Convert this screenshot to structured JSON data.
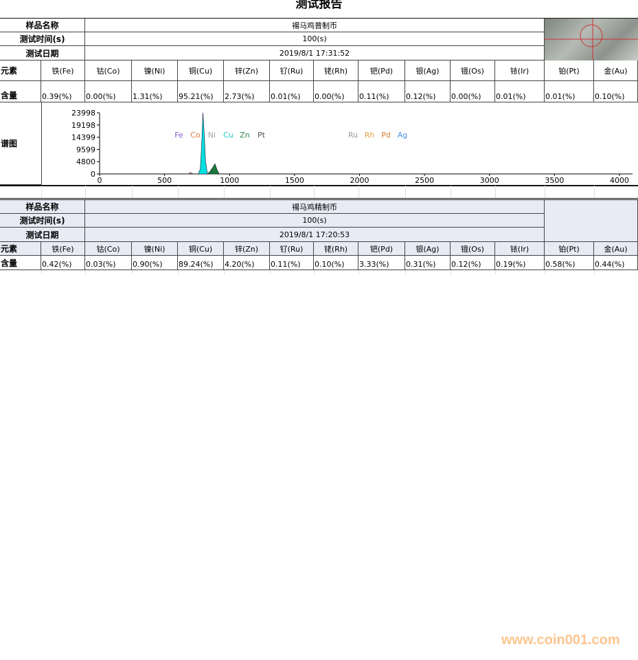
{
  "title": "测试报告",
  "labels": {
    "sample_name": "样品名称",
    "test_time": "测试时间(s)",
    "test_date": "测试日期",
    "element": "元素",
    "content": "含量",
    "spectrum": "谱图"
  },
  "elements": [
    "铁(Fe)",
    "钴(Co)",
    "镍(Ni)",
    "铜(Cu)",
    "锌(Zn)",
    "钌(Ru)",
    "铑(Rh)",
    "钯(Pd)",
    "银(Ag)",
    "锇(Os)",
    "铱(Ir)",
    "铂(Pt)",
    "金(Au)"
  ],
  "report1": {
    "sample_name": "禓马鸡普制币",
    "test_time": "100(s)",
    "test_date": "2019/8/1 17:31:52",
    "values": [
      "0.39(%)",
      "0.00(%)",
      "1.31(%)",
      "95.21(%)",
      "2.73(%)",
      "0.01(%)",
      "0.00(%)",
      "0.11(%)",
      "0.12(%)",
      "0.00(%)",
      "0.01(%)",
      "0.01(%)",
      "0.10(%)"
    ]
  },
  "report2": {
    "sample_name": "禓马鸡精制币",
    "test_time": "100(s)",
    "test_date": "2019/8/1 17:20:53",
    "values": [
      "0.42(%)",
      "0.03(%)",
      "0.90(%)",
      "89.24(%)",
      "4.20(%)",
      "0.11(%)",
      "0.10(%)",
      "3.33(%)",
      "0.31(%)",
      "0.12(%)",
      "0.19(%)",
      "0.58(%)",
      "0.44(%)"
    ]
  },
  "chart_data": {
    "type": "area",
    "xlim": [
      0,
      4000
    ],
    "ylim": [
      0,
      23998
    ],
    "x_ticks": [
      "0",
      "500",
      "1000",
      "1500",
      "2000",
      "2500",
      "3000",
      "3500",
      "4000"
    ],
    "y_ticks": [
      "0",
      "4800",
      "9599",
      "14399",
      "19198",
      "23998"
    ],
    "peak_labels": [
      {
        "text": "Fe",
        "x": 610,
        "color": "#8a5bd6"
      },
      {
        "text": "Co",
        "x": 680,
        "color": "#e07a3a"
      },
      {
        "text": "Ni",
        "x": 730,
        "color": "#a0a0a0"
      },
      {
        "text": "Cu",
        "x": 780,
        "color": "#22c3c9"
      },
      {
        "text": "Zn",
        "x": 830,
        "color": "#2c8a4a"
      },
      {
        "text": "Pt",
        "x": 950,
        "color": "#555555"
      },
      {
        "text": "Ru",
        "x": 1950,
        "color": "#999999"
      },
      {
        "text": "Rh",
        "x": 2030,
        "color": "#e0a040"
      },
      {
        "text": "Pd",
        "x": 2090,
        "color": "#d07a30"
      },
      {
        "text": "Ag",
        "x": 2200,
        "color": "#4a90d9"
      }
    ],
    "series": [
      {
        "color": "#00e0e0",
        "points": [
          [
            760,
            0
          ],
          [
            775,
            2000
          ],
          [
            785,
            11000
          ],
          [
            795,
            23998
          ],
          [
            805,
            16000
          ],
          [
            815,
            5000
          ],
          [
            830,
            0
          ]
        ]
      },
      {
        "color": "#1a7a3a",
        "points": [
          [
            830,
            0
          ],
          [
            850,
            1000
          ],
          [
            870,
            2500
          ],
          [
            888,
            4000
          ],
          [
            905,
            1500
          ],
          [
            920,
            0
          ]
        ]
      },
      {
        "color": "#d07a30",
        "points": [
          [
            680,
            0
          ],
          [
            700,
            500
          ],
          [
            720,
            0
          ]
        ]
      }
    ]
  },
  "watermark": "www.coin001.com",
  "colors": {
    "header_shade": "#e8eaf4",
    "watermark": "#fbc58f"
  }
}
